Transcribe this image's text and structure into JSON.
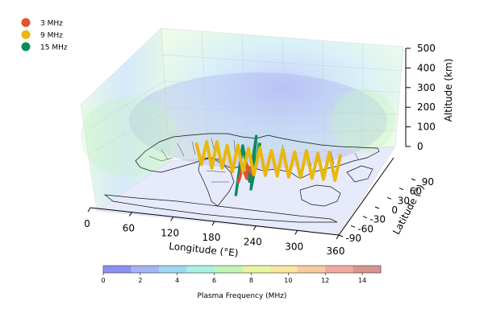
{
  "chart_data": {
    "type": "3d-line",
    "xlabel": "Longitude (°E)",
    "ylabel": "Latitude (°)",
    "zlabel": "Altitude (km)",
    "xlim": [
      0,
      360
    ],
    "ylim": [
      -90,
      90
    ],
    "zlim": [
      0,
      500
    ],
    "xticks": [
      0,
      60,
      120,
      180,
      240,
      300,
      360
    ],
    "yticks": [
      -90,
      -60,
      -30,
      0,
      30,
      60,
      90
    ],
    "zticks": [
      0,
      100,
      200,
      300,
      400,
      500
    ],
    "legend_position": "top-left",
    "series": [
      {
        "name": "3 MHz",
        "color": "#e4512b",
        "x": [
          165,
          169,
          173,
          177,
          181,
          185
        ],
        "y": [
          -5,
          -2,
          2,
          -4,
          3,
          -1
        ],
        "z": [
          60,
          130,
          70,
          150,
          90,
          120
        ]
      },
      {
        "name": "9 MHz",
        "color": "#e8b80c",
        "x": [
          100,
          108,
          116,
          124,
          132,
          140,
          148,
          156,
          164,
          172,
          180,
          188,
          196,
          204,
          212,
          220,
          228,
          236,
          244,
          252,
          260,
          268,
          276,
          284,
          292,
          300,
          308
        ],
        "y": [
          2,
          1,
          0,
          -1,
          -2,
          -3,
          -4,
          -5,
          -5,
          -6,
          -6,
          -6,
          -5,
          -5,
          -4,
          -3,
          -3,
          -2,
          -1,
          0,
          1,
          1,
          2,
          2,
          3,
          3,
          3
        ],
        "z": [
          220,
          120,
          240,
          110,
          250,
          120,
          240,
          110,
          250,
          120,
          240,
          110,
          250,
          110,
          240,
          110,
          250,
          110,
          240,
          110,
          250,
          110,
          240,
          110,
          250,
          110,
          240
        ]
      },
      {
        "name": "15 MHz",
        "color": "#0e8a5f",
        "x": [
          170,
          174,
          178,
          182,
          186,
          190
        ],
        "y": [
          -20,
          -10,
          0,
          10,
          -10,
          5
        ],
        "z": [
          20,
          260,
          60,
          280,
          40,
          250
        ]
      }
    ],
    "colorbar": {
      "label": "Plasma Frequency (MHz)",
      "ticks": [
        0,
        2,
        4,
        6,
        8,
        10,
        12,
        14
      ],
      "range": [
        0,
        15
      ],
      "colors": [
        "#8d8ff2",
        "#a4b3f4",
        "#9ed8f2",
        "#a8f1e4",
        "#c0f5b8",
        "#e8f5a0",
        "#f8e79e",
        "#f8cb9e",
        "#f2aaa0",
        "#d9948f"
      ]
    }
  }
}
